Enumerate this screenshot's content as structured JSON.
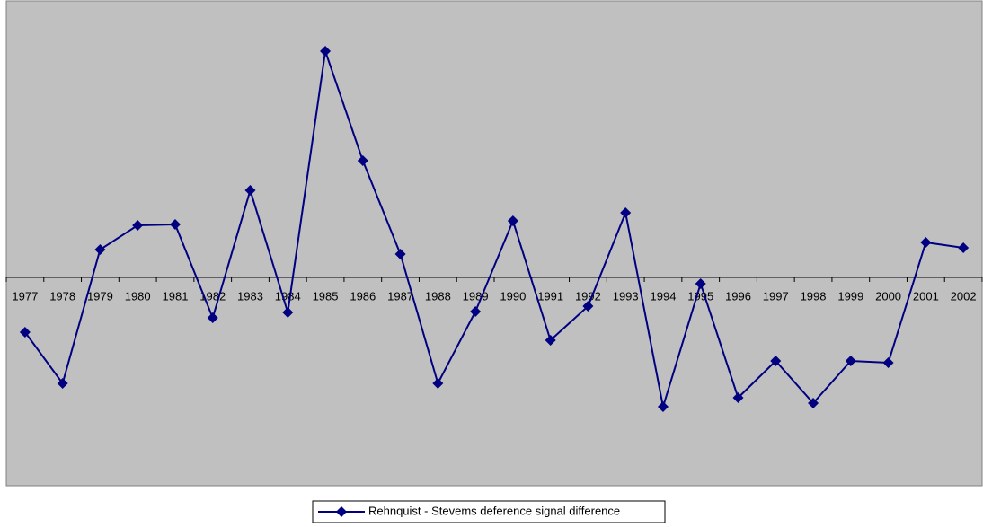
{
  "chart_data": {
    "type": "line",
    "categories": [
      "1977",
      "1978",
      "1979",
      "1980",
      "1981",
      "1982",
      "1983",
      "1984",
      "1985",
      "1986",
      "1987",
      "1988",
      "1989",
      "1990",
      "1991",
      "1992",
      "1993",
      "1994",
      "1995",
      "1996",
      "1997",
      "1998",
      "1999",
      "2000",
      "2001",
      "2002"
    ],
    "series": [
      {
        "name": "Rehnquist - Stevems deference signal difference",
        "color": "#000080",
        "values": [
          -6.1,
          -11.8,
          3.1,
          5.8,
          5.9,
          -4.5,
          9.7,
          -3.9,
          25.2,
          13.0,
          2.6,
          -11.8,
          -3.8,
          6.3,
          -7.0,
          -3.2,
          7.2,
          -14.4,
          -0.7,
          -13.4,
          -9.3,
          -14.0,
          -9.3,
          -9.5,
          3.9,
          3.3
        ]
      }
    ],
    "ylim": [
      -23.2,
      30.8
    ],
    "legend": "bottom"
  }
}
